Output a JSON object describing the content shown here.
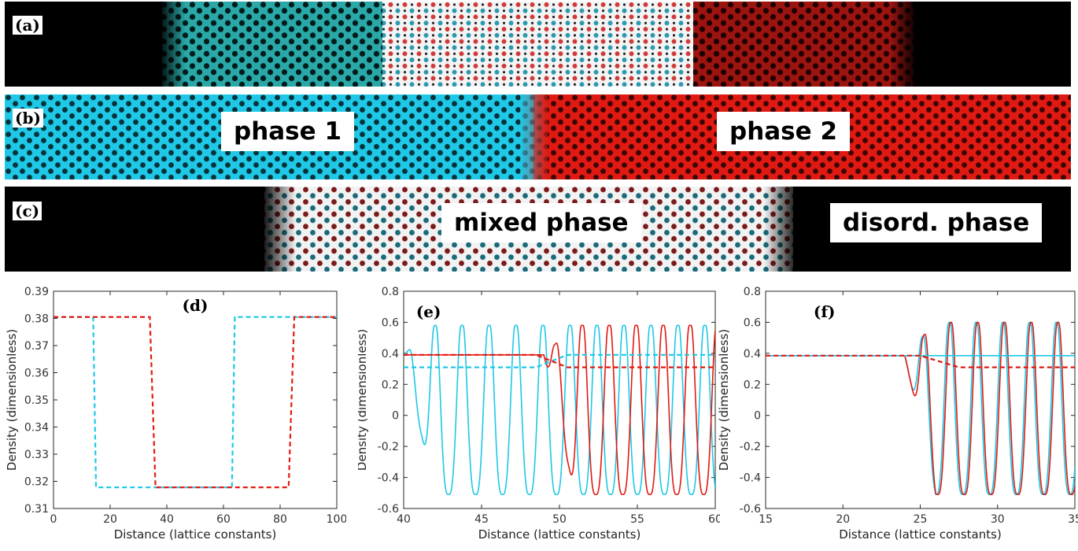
{
  "strips": {
    "a": {
      "letter": "(a)"
    },
    "b": {
      "letter": "(b)",
      "label_left": "phase 1",
      "label_right": "phase 2"
    },
    "c": {
      "letter": "(c)",
      "label_mid": "mixed phase",
      "label_right": "disord. phase"
    }
  },
  "colors": {
    "cyan": "#1ec8e6",
    "red": "#e01a12",
    "dark_red": "#a01010",
    "black": "#000000"
  },
  "chart_data": [
    {
      "panel": "(d)",
      "type": "line",
      "xlabel": "Distance (lattice constants)",
      "ylabel": "Density (dimensionless)",
      "xlim": [
        0,
        100
      ],
      "ylim": [
        0.31,
        0.39
      ],
      "xticks": [
        "0",
        "20",
        "40",
        "60",
        "80",
        "100"
      ],
      "yticks": [
        "0.31",
        "0.32",
        "0.33",
        "0.34",
        "0.35",
        "0.36",
        "0.37",
        "0.38",
        "0.39"
      ],
      "series": [
        {
          "color": "#1ec8e6",
          "style": "dashed",
          "x": [
            0,
            14,
            15,
            63,
            64,
            100
          ],
          "y": [
            0.3805,
            0.3805,
            0.3178,
            0.3178,
            0.3805,
            0.3805
          ]
        },
        {
          "color": "#e01a12",
          "style": "dashed",
          "x": [
            0,
            34,
            36,
            83,
            85,
            100
          ],
          "y": [
            0.3805,
            0.3805,
            0.3178,
            0.3178,
            0.3805,
            0.3805
          ]
        }
      ]
    },
    {
      "panel": "(e)",
      "type": "line",
      "xlabel": "Distance (lattice constants)",
      "ylabel": "Density (dimensionless)",
      "xlim": [
        40,
        60
      ],
      "ylim": [
        -0.6,
        0.8
      ],
      "xticks": [
        "40",
        "45",
        "50",
        "55",
        "60"
      ],
      "yticks": [
        "-0.6",
        "-0.4",
        "-0.2",
        "0",
        "0.2",
        "0.4",
        "0.6",
        "0.8"
      ],
      "series": [
        {
          "color": "#1ec8e6",
          "style": "solid",
          "kind": "oscillation",
          "period": 1.732,
          "phase": 41.15,
          "peak": 0.68,
          "trough": -0.51,
          "mid": 0.58,
          "from": 40,
          "to": 50,
          "baseline": 0.39
        },
        {
          "color": "#e01a12",
          "style": "solid",
          "kind": "oscillation",
          "period": 1.732,
          "phase": 50.6,
          "peak": 0.68,
          "trough": -0.51,
          "mid": 0.58,
          "from": 49,
          "to": 60,
          "baseline": 0.39
        },
        {
          "color": "#1ec8e6",
          "style": "dashed",
          "x": [
            40,
            48.5,
            50.5,
            60
          ],
          "y": [
            0.31,
            0.31,
            0.39,
            0.39
          ]
        },
        {
          "color": "#e01a12",
          "style": "dashed",
          "x": [
            40,
            48.5,
            50.5,
            60
          ],
          "y": [
            0.39,
            0.39,
            0.31,
            0.31
          ]
        }
      ]
    },
    {
      "panel": "(f)",
      "type": "line",
      "xlabel": "Distance (lattice constants)",
      "ylabel": "Density (dimensionless)",
      "xlim": [
        15,
        35
      ],
      "ylim": [
        -0.6,
        0.8
      ],
      "xticks": [
        "15",
        "20",
        "25",
        "30",
        "35"
      ],
      "yticks": [
        "-0.6",
        "-0.4",
        "-0.2",
        "0",
        "0.2",
        "0.4",
        "0.6",
        "0.8"
      ],
      "series": [
        {
          "color": "#1ec8e6",
          "style": "solid",
          "kind": "oscillation",
          "period": 1.732,
          "phase": 27.75,
          "peak": 0.68,
          "trough": -0.51,
          "mid": 0.6,
          "from": 24,
          "to": 35,
          "baseline": 0.385
        },
        {
          "color": "#e01a12",
          "style": "solid",
          "kind": "oscillation",
          "period": 1.732,
          "phase": 27.85,
          "peak": 0.68,
          "trough": -0.51,
          "mid": 0.6,
          "from": 24,
          "to": 35,
          "baseline": 0.385
        },
        {
          "color": "#1ec8e6",
          "style": "solid",
          "x": [
            15,
            24,
            35
          ],
          "y": [
            0.385,
            0.385,
            0.385
          ]
        },
        {
          "color": "#e01a12",
          "style": "dashed",
          "x": [
            15,
            25,
            27.5,
            35
          ],
          "y": [
            0.385,
            0.385,
            0.31,
            0.31
          ]
        }
      ]
    }
  ]
}
